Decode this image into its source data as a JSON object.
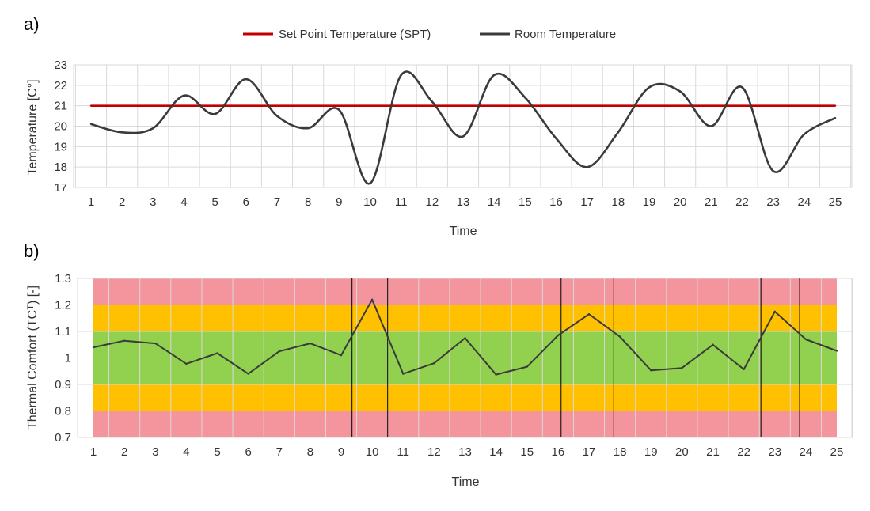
{
  "chart_data": [
    {
      "panel_label": "a)",
      "type": "line",
      "xlabel": "Time",
      "ylabel": "Temperature [C°]",
      "ylim": [
        17,
        23
      ],
      "yticks": [
        "17",
        "18",
        "19",
        "20",
        "21",
        "22",
        "23"
      ],
      "grid": true,
      "legend_position": "top",
      "categories": [
        "1",
        "2",
        "3",
        "4",
        "5",
        "6",
        "7",
        "8",
        "9",
        "10",
        "11",
        "12",
        "13",
        "14",
        "15",
        "16",
        "17",
        "18",
        "19",
        "20",
        "21",
        "22",
        "23",
        "24",
        "25"
      ],
      "series": [
        {
          "name": "Set Point Temperature (SPT)",
          "color": "#c00000",
          "values": [
            21,
            21,
            21,
            21,
            21,
            21,
            21,
            21,
            21,
            21,
            21,
            21,
            21,
            21,
            21,
            21,
            21,
            21,
            21,
            21,
            21,
            21,
            21,
            21,
            21
          ]
        },
        {
          "name": "Room Temperature",
          "color": "#3a3a3a",
          "smooth": true,
          "values": [
            20.1,
            19.7,
            19.9,
            21.5,
            20.6,
            22.3,
            20.5,
            19.9,
            20.8,
            17.2,
            22.5,
            21.2,
            19.5,
            22.5,
            21.4,
            19.4,
            18.0,
            19.7,
            21.9,
            21.7,
            20.0,
            21.9,
            17.8,
            19.6,
            20.4
          ]
        }
      ]
    },
    {
      "panel_label": "b)",
      "type": "line",
      "xlabel": "Time",
      "ylabel": "Thermal Comfort  (TCᵀ) [-]",
      "ylim": [
        0.7,
        1.3
      ],
      "yticks": [
        "0.7",
        "0.8",
        "0.9",
        "1",
        "1.1",
        "1.2",
        "1.3"
      ],
      "grid": true,
      "categories": [
        "1",
        "2",
        "3",
        "4",
        "5",
        "6",
        "7",
        "8",
        "9",
        "10",
        "11",
        "12",
        "13",
        "14",
        "15",
        "16",
        "17",
        "18",
        "19",
        "20",
        "21",
        "22",
        "23",
        "24",
        "25"
      ],
      "bands": [
        {
          "from": 1.2,
          "to": 1.3,
          "color": "#f4949c"
        },
        {
          "from": 1.1,
          "to": 1.2,
          "color": "#ffc000"
        },
        {
          "from": 0.9,
          "to": 1.1,
          "color": "#92d050"
        },
        {
          "from": 0.8,
          "to": 0.9,
          "color": "#ffc000"
        },
        {
          "from": 0.7,
          "to": 0.8,
          "color": "#f4949c"
        }
      ],
      "vertical_lines_x": [
        9.35,
        10.5,
        16.1,
        17.8,
        22.55,
        23.8
      ],
      "series": [
        {
          "color": "#3a3a3a",
          "values": [
            1.04,
            1.065,
            1.055,
            0.978,
            1.018,
            0.94,
            1.025,
            1.055,
            1.01,
            1.22,
            0.94,
            0.98,
            1.075,
            0.937,
            0.967,
            1.085,
            1.165,
            1.08,
            0.953,
            0.962,
            1.05,
            0.957,
            1.175,
            1.07,
            1.027
          ]
        }
      ]
    }
  ]
}
